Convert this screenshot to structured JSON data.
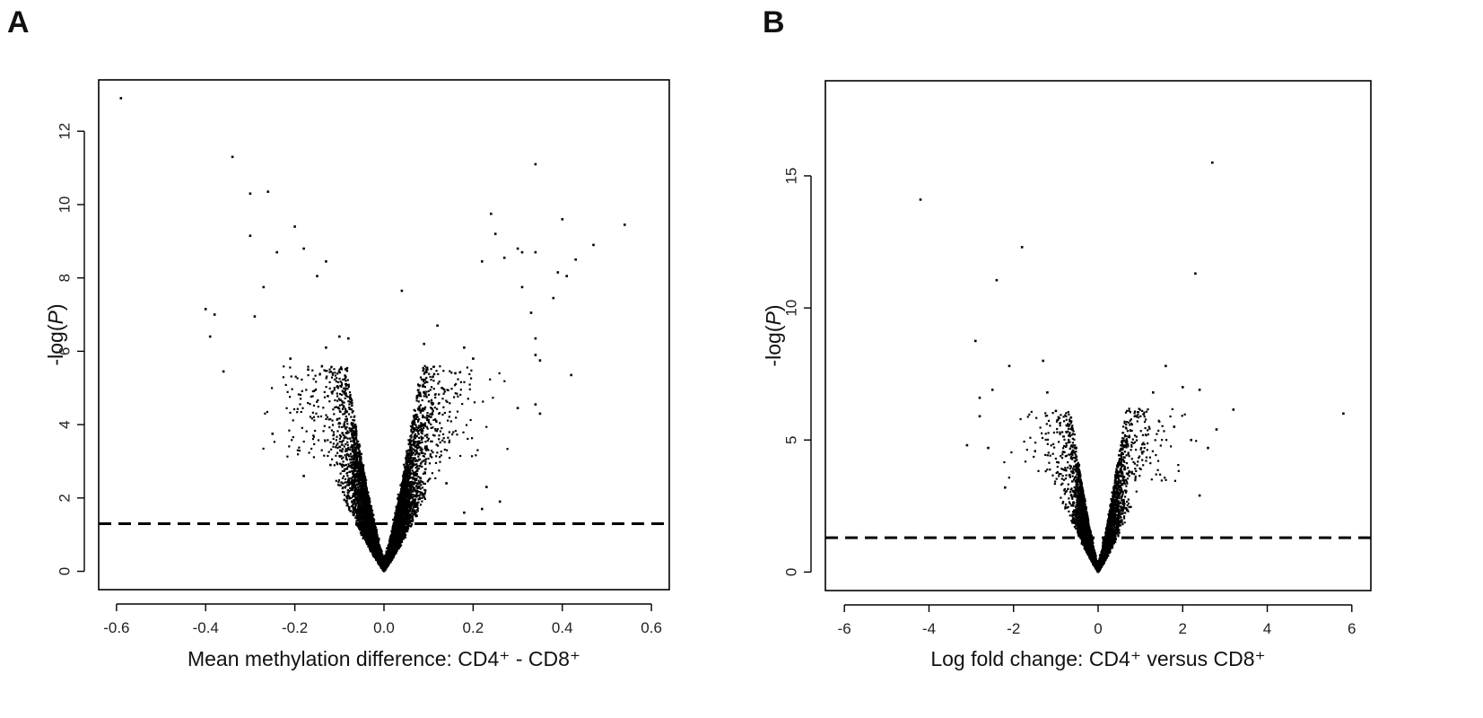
{
  "panels": [
    {
      "letter": "A"
    },
    {
      "letter": "B"
    }
  ],
  "chart_data": [
    {
      "type": "scatter",
      "panel": "A",
      "xlabel": "Mean methylation difference: CD4⁺ - CD8⁺",
      "ylabel": "-log(P)",
      "xlim": [
        -0.64,
        0.64
      ],
      "ylim": [
        -0.5,
        13.4
      ],
      "xticks": [
        -0.6,
        -0.4,
        -0.2,
        0.0,
        0.2,
        0.4,
        0.6
      ],
      "xtick_labels": [
        "-0.6",
        "-0.4",
        "-0.2",
        "0.0",
        "0.2",
        "0.4",
        "0.6"
      ],
      "yticks": [
        0,
        2,
        4,
        6,
        8,
        10,
        12
      ],
      "ytick_labels": [
        "0",
        "2",
        "4",
        "6",
        "8",
        "10",
        "12"
      ],
      "threshold": 1.3,
      "grid": false,
      "dense_cloud": {
        "core_half_width": 0.09,
        "max_y_core": 5.6,
        "n_points": 9000
      },
      "points": [
        [
          -0.59,
          12.9
        ],
        [
          -0.34,
          11.3
        ],
        [
          -0.3,
          10.3
        ],
        [
          -0.26,
          10.35
        ],
        [
          -0.3,
          9.15
        ],
        [
          -0.2,
          9.4
        ],
        [
          -0.18,
          8.8
        ],
        [
          -0.24,
          8.7
        ],
        [
          -0.13,
          8.45
        ],
        [
          -0.15,
          8.05
        ],
        [
          -0.27,
          7.75
        ],
        [
          -0.4,
          7.15
        ],
        [
          -0.38,
          7.0
        ],
        [
          -0.29,
          6.95
        ],
        [
          -0.39,
          6.4
        ],
        [
          -0.36,
          5.45
        ],
        [
          -0.25,
          3.75
        ],
        [
          0.04,
          7.65
        ],
        [
          0.24,
          9.75
        ],
        [
          0.25,
          9.2
        ],
        [
          0.34,
          11.1
        ],
        [
          0.4,
          9.6
        ],
        [
          0.54,
          9.45
        ],
        [
          0.47,
          8.9
        ],
        [
          0.3,
          8.8
        ],
        [
          0.31,
          8.7
        ],
        [
          0.34,
          8.7
        ],
        [
          0.27,
          8.55
        ],
        [
          0.43,
          8.5
        ],
        [
          0.22,
          8.45
        ],
        [
          0.39,
          8.15
        ],
        [
          0.41,
          8.05
        ],
        [
          0.31,
          7.75
        ],
        [
          0.38,
          7.45
        ],
        [
          0.33,
          7.05
        ],
        [
          0.42,
          5.35
        ],
        [
          0.34,
          6.35
        ],
        [
          0.34,
          5.9
        ],
        [
          0.35,
          5.75
        ],
        [
          0.34,
          4.55
        ],
        [
          0.35,
          4.3
        ],
        [
          0.3,
          4.45
        ],
        [
          0.23,
          2.3
        ],
        [
          0.26,
          1.9
        ],
        [
          0.22,
          1.7
        ],
        [
          0.18,
          1.6
        ],
        [
          0.14,
          2.4
        ],
        [
          0.18,
          6.1
        ],
        [
          0.2,
          5.8
        ],
        [
          0.16,
          5.4
        ],
        [
          0.12,
          6.7
        ],
        [
          0.09,
          6.2
        ],
        [
          -0.1,
          6.4
        ],
        [
          -0.13,
          6.1
        ],
        [
          -0.08,
          6.35
        ],
        [
          -0.21,
          5.8
        ],
        [
          -0.17,
          5.5
        ],
        [
          -0.18,
          2.6
        ],
        [
          -0.12,
          2.9
        ],
        [
          0.13,
          5.0
        ]
      ]
    },
    {
      "type": "scatter",
      "panel": "B",
      "xlabel": "Log fold change: CD4⁺ versus CD8⁺",
      "ylabel": "-log(P)",
      "xlim": [
        -6.45,
        6.45
      ],
      "ylim": [
        -0.7,
        18.6
      ],
      "xticks": [
        -6,
        -4,
        -2,
        0,
        2,
        4,
        6
      ],
      "xtick_labels": [
        "-6",
        "-4",
        "-2",
        "0",
        "2",
        "4",
        "6"
      ],
      "yticks": [
        0,
        5,
        10,
        15
      ],
      "ytick_labels": [
        "0",
        "5",
        "10",
        "15"
      ],
      "threshold": 1.3,
      "grid": false,
      "dense_cloud": {
        "core_half_width": 0.7,
        "max_y_core": 6.2,
        "n_points": 5500
      },
      "points": [
        [
          -4.2,
          14.1
        ],
        [
          -1.8,
          12.3
        ],
        [
          -2.4,
          11.05
        ],
        [
          -2.9,
          8.75
        ],
        [
          -1.3,
          8.0
        ],
        [
          -2.1,
          7.8
        ],
        [
          -2.5,
          6.9
        ],
        [
          -2.8,
          6.6
        ],
        [
          -2.8,
          5.9
        ],
        [
          -2.6,
          4.7
        ],
        [
          -3.1,
          4.8
        ],
        [
          -2.2,
          3.2
        ],
        [
          2.7,
          15.5
        ],
        [
          2.3,
          11.3
        ],
        [
          1.6,
          7.8
        ],
        [
          2.0,
          7.0
        ],
        [
          2.4,
          6.9
        ],
        [
          3.2,
          6.15
        ],
        [
          5.8,
          6.0
        ],
        [
          2.8,
          5.4
        ],
        [
          2.2,
          5.0
        ],
        [
          2.6,
          4.7
        ],
        [
          2.4,
          2.9
        ],
        [
          1.8,
          5.5
        ],
        [
          1.3,
          6.8
        ],
        [
          -1.2,
          6.8
        ],
        [
          -1.0,
          6.1
        ]
      ]
    }
  ]
}
